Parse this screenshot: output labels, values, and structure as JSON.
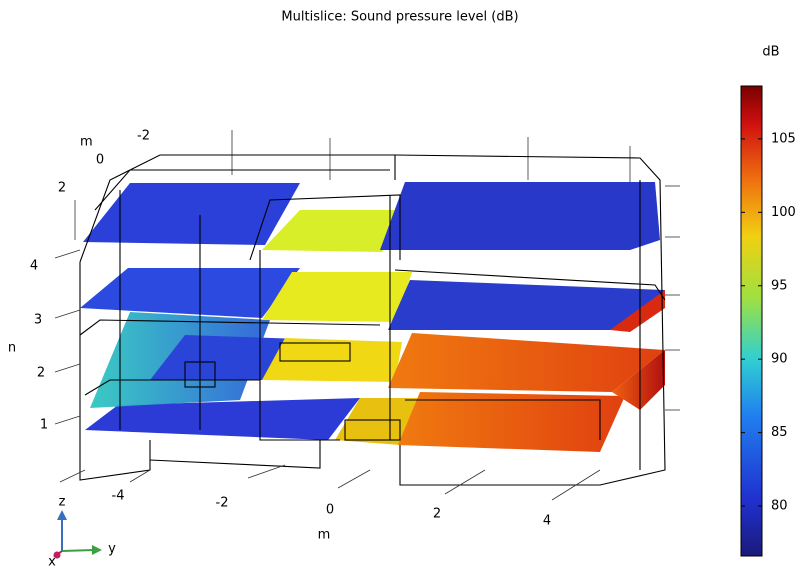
{
  "title": "Multislice: Sound pressure level (dB)",
  "colorbar": {
    "unit": "dB",
    "range": [
      76.6,
      108.6
    ],
    "ticks": [
      80,
      85,
      90,
      95,
      100,
      105
    ]
  },
  "axes": {
    "back_axis_unit": "m",
    "back_axis_ticks": [
      "-2",
      "0",
      "2"
    ],
    "z_axis_ticks": [
      "4",
      "3",
      "2",
      "1"
    ],
    "z_axis_unit": "n",
    "front_axis_ticks": [
      "-4",
      "-2",
      "0",
      "2",
      "4"
    ],
    "front_axis_unit": "m"
  },
  "triad": {
    "z": "z",
    "y": "y",
    "x": "x"
  }
}
